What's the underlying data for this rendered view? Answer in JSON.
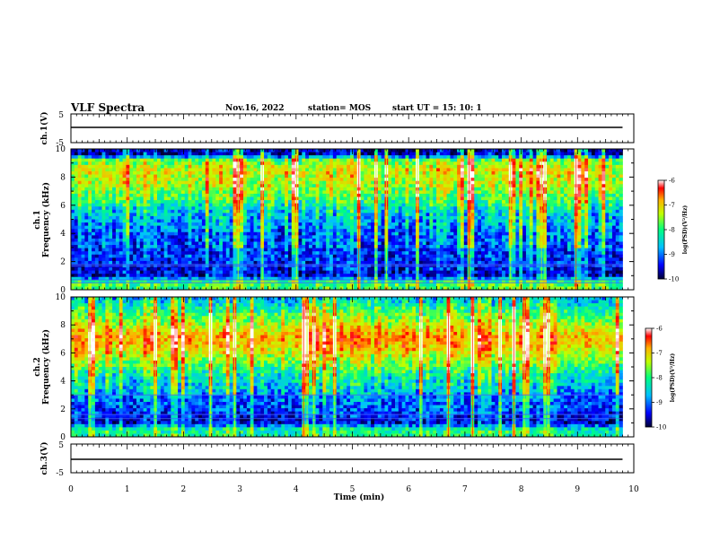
{
  "header": {
    "title": "VLF Spectra",
    "date": "Nov.16, 2022",
    "station": "station= MOS",
    "start": "start  UT =  15: 10: 1"
  },
  "chart_data": [
    {
      "type": "line",
      "panel": "ch1-waveform",
      "ylabel": "ch.1(V)",
      "ylim": [
        -5,
        5
      ],
      "yticks": [
        "5",
        "-5"
      ],
      "x": [
        0,
        10
      ],
      "y": [
        0,
        0
      ]
    },
    {
      "type": "heatmap",
      "panel": "ch1-spectrogram",
      "ylabel": "ch.1\nFrequency (kHz)",
      "ylabel_lines": [
        "ch.1",
        "Frequency (kHz)"
      ],
      "ylim": [
        0,
        10
      ],
      "yticks": [
        "0",
        "2",
        "4",
        "6",
        "8",
        "10"
      ],
      "xlim": [
        0,
        10
      ],
      "colorbar": {
        "label": "log(PSD)(V²/Hz)",
        "range": [
          -10,
          -6
        ],
        "ticks": [
          "-6",
          "-7",
          "-8",
          "-9",
          "-10"
        ]
      },
      "intensity_profile_khz": [
        [
          0.5,
          -8.2
        ],
        [
          1.0,
          -9.6
        ],
        [
          2.0,
          -9.4
        ],
        [
          4.0,
          -9.3
        ],
        [
          5.5,
          -8.9
        ],
        [
          6.5,
          -8.3
        ],
        [
          7.5,
          -7.9
        ],
        [
          8.5,
          -7.7
        ],
        [
          9.2,
          -8.2
        ],
        [
          9.6,
          -9.8
        ]
      ],
      "lines_khz": [
        0.5,
        0.7,
        1.7,
        1.8
      ]
    },
    {
      "type": "heatmap",
      "panel": "ch2-spectrogram",
      "ylabel": "ch.2\nFrequency (kHz)",
      "ylabel_lines": [
        "ch.2",
        "Frequency (kHz)"
      ],
      "ylim": [
        0,
        10
      ],
      "yticks": [
        "0",
        "2",
        "4",
        "6",
        "8",
        "10"
      ],
      "xlim": [
        0,
        10
      ],
      "colorbar": {
        "label": "log(PSD)(V²/Hz)",
        "range": [
          -10,
          -6
        ],
        "ticks": [
          "-6",
          "-7",
          "-8",
          "-9",
          "-10"
        ]
      },
      "intensity_profile_khz": [
        [
          0.5,
          -8.4
        ],
        [
          1.0,
          -9.6
        ],
        [
          2.0,
          -9.3
        ],
        [
          3.0,
          -9.1
        ],
        [
          4.5,
          -8.6
        ],
        [
          5.5,
          -8.0
        ],
        [
          6.5,
          -7.4
        ],
        [
          7.2,
          -7.3
        ],
        [
          8.0,
          -7.8
        ],
        [
          9.0,
          -8.4
        ],
        [
          9.8,
          -8.9
        ]
      ],
      "lines_khz": [
        1.3,
        1.6,
        3.0
      ]
    },
    {
      "type": "line",
      "panel": "ch3-waveform",
      "ylabel": "ch.3(V)",
      "ylim": [
        -5,
        5
      ],
      "yticks": [
        "5",
        "-5"
      ],
      "x": [
        0,
        10
      ],
      "y": [
        0,
        0
      ]
    }
  ],
  "xaxis": {
    "label": "Time (min)",
    "ticks": [
      "0",
      "1",
      "2",
      "3",
      "4",
      "5",
      "6",
      "7",
      "8",
      "9",
      "10"
    ],
    "range": [
      0,
      10
    ],
    "data_end_min": 9.8
  },
  "colors": {
    "map": [
      "#000033",
      "#0000ff",
      "#00c0ff",
      "#00ff80",
      "#c0ff00",
      "#ffb000",
      "#ff0000",
      "#ffffff"
    ],
    "background": "#ffffff",
    "trace": "#000000"
  }
}
